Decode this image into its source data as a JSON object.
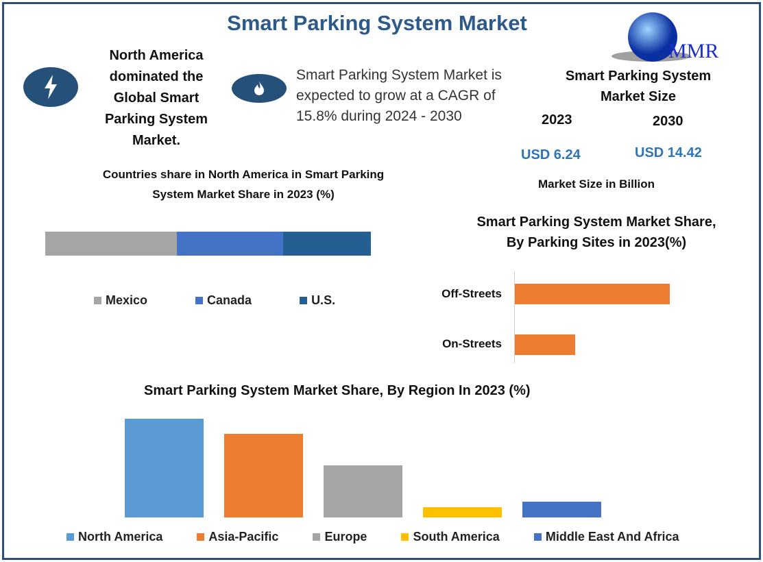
{
  "header": {
    "title": "Smart Parking System Market",
    "logo_text": "MMR"
  },
  "highlights": {
    "dominance": "North America dominated the Global Smart Parking System Market.",
    "cagr": "Smart Parking System Market is expected to grow at a CAGR of 15.8% during 2024 - 2030"
  },
  "market_size": {
    "title": "Smart Parking System Market Size",
    "year1": "2023",
    "year2": "2030",
    "value1": "USD 6.24",
    "value2": "USD 14.42",
    "unit": "Market Size in Billion"
  },
  "colors": {
    "blue": "#5b9bd5",
    "orange": "#ed7d31",
    "gray": "#a5a5a5",
    "yellow": "#ffc000",
    "darkblue": "#4472c4",
    "navy": "#255e91"
  },
  "chart_data": [
    {
      "type": "bar",
      "stacked": true,
      "title": "Countries share in North America in Smart Parking System Market Share in 2023 (%)",
      "series": [
        {
          "name": "Mexico",
          "values": [
            40.4
          ],
          "color": "#a5a5a5"
        },
        {
          "name": "Canada",
          "values": [
            32.6
          ],
          "color": "#4472c4"
        },
        {
          "name": "U.S.",
          "values": [
            27.0
          ],
          "color": "#255e91"
        }
      ],
      "legend": "bottom"
    },
    {
      "type": "bar",
      "orientation": "horizontal",
      "title": "Smart Parking System Market Share, By Parking Sites in 2023(%)",
      "categories": [
        "Off-Streets",
        "On-Streets"
      ],
      "values": [
        72,
        28
      ],
      "xlim": [
        0,
        100
      ],
      "color": "#ed7d31"
    },
    {
      "type": "bar",
      "title": "Smart Parking System Market Share, By Region In 2023 (%)",
      "categories": [
        "North America",
        "Asia-Pacific",
        "Europe",
        "South America",
        "Middle East And Africa"
      ],
      "values": [
        38,
        32,
        20,
        4,
        6
      ],
      "colors": [
        "#5b9bd5",
        "#ed7d31",
        "#a5a5a5",
        "#ffc000",
        "#4472c4"
      ],
      "ylim": [
        0,
        40
      ],
      "legend": "bottom"
    }
  ]
}
